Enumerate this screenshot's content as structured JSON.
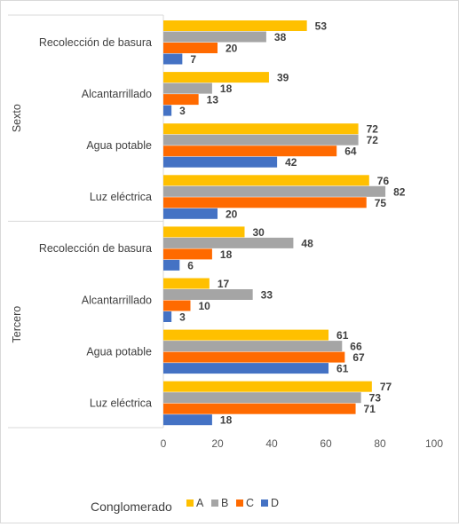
{
  "chart_data": {
    "type": "bar",
    "orientation": "horizontal",
    "legend_title": "Conglomerado",
    "legend_position": "bottom",
    "groups": [
      {
        "name": "Sexto",
        "categories": [
          {
            "label": "Recolección de basura",
            "values": {
              "A": 53,
              "B": 38,
              "C": 20,
              "D": 7
            }
          },
          {
            "label": "Alcantarrillado",
            "values": {
              "A": 39,
              "B": 18,
              "C": 13,
              "D": 3
            }
          },
          {
            "label": "Agua potable",
            "values": {
              "A": 72,
              "B": 72,
              "C": 64,
              "D": 42
            }
          },
          {
            "label": "Luz eléctrica",
            "values": {
              "A": 76,
              "B": 82,
              "C": 75,
              "D": 20
            }
          }
        ]
      },
      {
        "name": "Tercero",
        "categories": [
          {
            "label": "Recolección de basura",
            "values": {
              "A": 30,
              "B": 48,
              "C": 18,
              "D": 6
            }
          },
          {
            "label": "Alcantarrillado",
            "values": {
              "A": 17,
              "B": 33,
              "C": 10,
              "D": 3
            }
          },
          {
            "label": "Agua potable",
            "values": {
              "A": 61,
              "B": 66,
              "C": 67,
              "D": 61
            }
          },
          {
            "label": "Luz eléctrica",
            "values": {
              "A": 77,
              "B": 73,
              "C": 71,
              "D": 18
            }
          }
        ]
      }
    ],
    "series": [
      {
        "name": "A",
        "color": "#FFC000"
      },
      {
        "name": "B",
        "color": "#A5A5A5"
      },
      {
        "name": "C",
        "color": "#FF6A00"
      },
      {
        "name": "D",
        "color": "#4472C4"
      }
    ],
    "xlim": [
      0,
      100
    ],
    "xticks": [
      0,
      20,
      40,
      60,
      80,
      100
    ],
    "grid": false
  }
}
